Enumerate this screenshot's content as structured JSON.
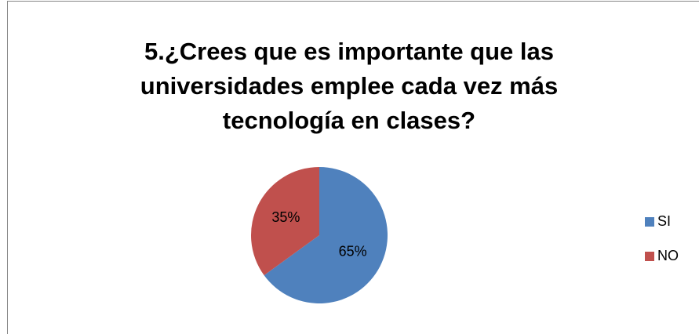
{
  "chart_data": {
    "type": "pie",
    "title": "5.¿Crees que es importante que las universidades emplee cada vez más tecnología en clases?",
    "categories": [
      "SI",
      "NO"
    ],
    "values": [
      65,
      35
    ],
    "value_labels": [
      "65%",
      "35%"
    ],
    "colors": [
      "#4f81bd",
      "#c0504d"
    ],
    "legend": "right"
  }
}
